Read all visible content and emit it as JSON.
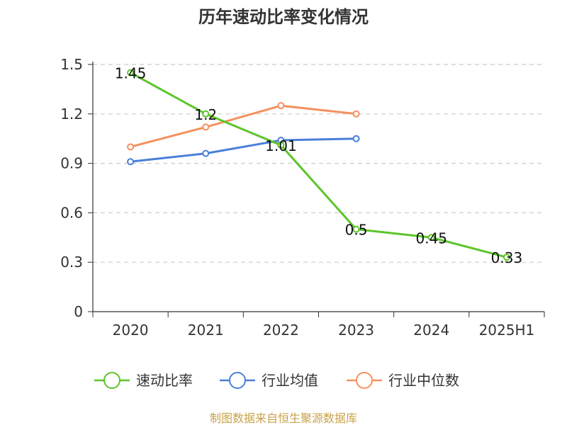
{
  "chart_data": {
    "type": "line",
    "title": "历年速动比率变化情况",
    "categories": [
      "2020",
      "2021",
      "2022",
      "2023",
      "2024",
      "2025H1"
    ],
    "ylim": [
      0,
      1.5
    ],
    "yticks": [
      "0",
      "0.3",
      "0.6",
      "0.9",
      "1.2",
      "1.5"
    ],
    "grid": true,
    "legend_position": "bottom",
    "series": [
      {
        "name": "速动比率",
        "color": "#5cc52a",
        "values": [
          1.45,
          1.2,
          1.01,
          0.5,
          0.45,
          0.33
        ],
        "labels": [
          "1.45",
          "1.2",
          "1.01",
          "0.5",
          "0.45",
          "0.33"
        ]
      },
      {
        "name": "行业均值",
        "color": "#4a7fd9",
        "values": [
          0.91,
          0.96,
          1.04,
          1.05,
          null,
          null
        ]
      },
      {
        "name": "行业中位数",
        "color": "#f4915e",
        "values": [
          1.0,
          1.12,
          1.25,
          1.2,
          null,
          null
        ]
      }
    ]
  },
  "source_note": "制图数据来自恒生聚源数据库"
}
